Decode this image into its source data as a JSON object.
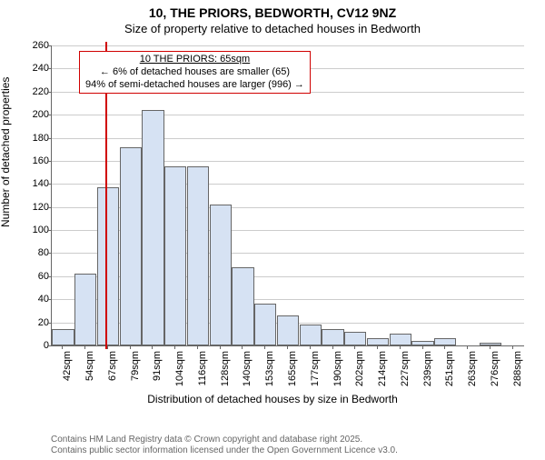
{
  "title": "10, THE PRIORS, BEDWORTH, CV12 9NZ",
  "subtitle": "Size of property relative to detached houses in Bedworth",
  "chart": {
    "type": "histogram",
    "ylabel": "Number of detached properties",
    "xlabel": "Distribution of detached houses by size in Bedworth",
    "ylim": [
      0,
      260
    ],
    "ytick_step": 20,
    "bar_fill": "#d6e2f3",
    "bar_border": "#666666",
    "grid_color": "#cccccc",
    "background": "#ffffff",
    "axis_color": "#666666",
    "label_fontsize": 12,
    "tick_fontsize": 11,
    "categories": [
      "42sqm",
      "54sqm",
      "67sqm",
      "79sqm",
      "91sqm",
      "104sqm",
      "116sqm",
      "128sqm",
      "140sqm",
      "153sqm",
      "165sqm",
      "177sqm",
      "190sqm",
      "202sqm",
      "214sqm",
      "227sqm",
      "239sqm",
      "251sqm",
      "263sqm",
      "276sqm",
      "288sqm"
    ],
    "values": [
      14,
      62,
      137,
      172,
      204,
      155,
      155,
      122,
      68,
      36,
      26,
      18,
      14,
      12,
      6,
      10,
      4,
      6,
      0,
      2,
      0
    ],
    "bar_width_ratio": 0.98,
    "marker": {
      "index_after": 1.88,
      "color": "#d00000",
      "width": 2
    },
    "callout": {
      "border_color": "#d00000",
      "background": "#ffffff",
      "fontsize": 11,
      "lines": [
        "10 THE PRIORS: 65sqm",
        "← 6% of detached houses are smaller (65)",
        "94% of semi-detached houses are larger (996) →"
      ]
    }
  },
  "footer": {
    "line1": "Contains HM Land Registry data © Crown copyright and database right 2025.",
    "line2": "Contains public sector information licensed under the Open Government Licence v3.0.",
    "color": "#666666",
    "fontsize": 10
  }
}
